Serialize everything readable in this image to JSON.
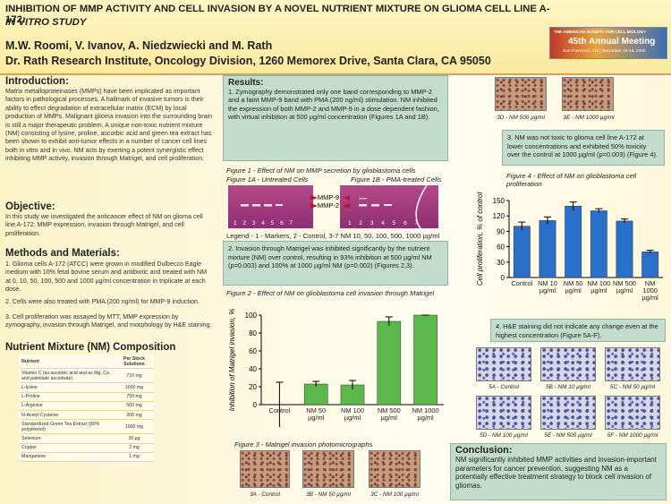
{
  "header": {
    "title_line1": "INHIBITION OF MMP ACTIVITY AND CELL INVASION BY A NOVEL NUTRIENT MIXTURE ON GLIOMA CELL LINE A-172:",
    "title_line2": "IN VITRO STUDY",
    "authors": "M.W. Roomi, V. Ivanov, A. Niedzwiecki and M. Rath",
    "affiliation": "Dr. Rath Research Institute, Oncology Division, 1260 Memorex Drive, Santa Clara, CA 95050",
    "logo": {
      "society": "THE AMERICAN SOCIETY FOR CELL BIOLOGY",
      "meeting": "45th Annual Meeting",
      "place": "San Francisco, CA | December 10-14, 2005"
    }
  },
  "introduction": {
    "heading": "Introduction:",
    "text": "Matrix metalloproteinases (MMPs) have been implicated as important factors in pathological processes. A hallmark of invasive tumors is their ability to effect degradation of extracellular matrix (ECM) by local production of MMPs. Malignant glioma invasion into the surrounding brain is still a major therapeutic problem. A unique non-toxic nutrient mixture (NM) consisting of lysine, proline, ascorbic acid and green tea extract has been shown to exhibit anti-tumor effects in a number of cancer cell lines both in vitro and in vivo. NM acts by exerting a potent synergistic effect inhibiting MMP activity, invasion through Matrigel, and cell proliferation."
  },
  "objective": {
    "heading": "Objective:",
    "text": "In this study we investigated the anticancer effect of NM on glioma cell line A-172: MMP expression, invasion through Matrigel, and cell proliferation."
  },
  "methods": {
    "heading": "Methods and Materials:",
    "items": [
      "1. Glioma cells A-172 (ATCC) were grown in modified Dulbecco Eagle medium with 10% fetal bovine serum and antibiotic and treated with NM at 0, 10, 50, 100, 500 and 1000 µg/ml concentration in triplicate at each dose.",
      "2. Cells were also treated with PMA (200 ng/ml) for MMP-9 induction.",
      "3. Cell proliferation was assayed by MTT, MMP expression by zymography, invasion through Matrigel, and morphology by H&E staining."
    ]
  },
  "composition": {
    "heading": "Nutrient Mixture (NM) Composition",
    "columns": [
      "Nutrient",
      "Per Stock Solutions"
    ],
    "rows": [
      [
        "Vitamin C (as ascorbic acid and as Mg, Ca and palmitate ascorbate)",
        "710 mg"
      ],
      [
        "L-lysine",
        "1000 mg"
      ],
      [
        "L-Proline",
        "750 mg"
      ],
      [
        "L-Arginine",
        "500 mg"
      ],
      [
        "N-Acetyl Cysteine",
        "200 mg"
      ],
      [
        "Standardized Green Tea Extract (80% polyphenol)",
        "1000 mg"
      ],
      [
        "Selenium",
        "30 µg"
      ],
      [
        "Copper",
        "2 mg"
      ],
      [
        "Manganese",
        "1 mg"
      ]
    ]
  },
  "results": {
    "heading": "Results:",
    "items": [
      "1. Zymography demonstrated only one band corresponding to MMP-2 and a faint MMP-9 band with PMA (200 ng/ml) stimulation. NM inhibited the expression of both MMP-2 and MMP-9 in a dose dependent fashion, with virtual inhibition at 500 µg/ml concentration (Figures 1A and 1B).",
      "2. Invasion through Matrigel was inhibited significantly by the nutrient mixture (NM) over control, resulting in 93% inhibition at 500 µg/ml NM (p=0.003) and 100% at 1000 µg/ml NM (p=0.002) (Figures 2,3).",
      "3. NM was not toxic to glioma cell line A-172 at lower concentrations and exhibited 50% toxicity over the control at 1000 µg/ml (p=0.003) (Figure 4).",
      "4. H&E staining did not indicate any change even at the highest concentration (Figure 5A-F)."
    ]
  },
  "figure1": {
    "title": "Figure 1 - Effect of NM on MMP secretion by glioblastoma cells",
    "panel_a": "Figure 1A - Untreated Cells",
    "panel_b": "Figure 1B - PMA-treated Cells",
    "mmp9": "MMP-9",
    "mmp2": "MMP-2",
    "lanes": "1 2 3 4 5 6 7",
    "legend": "Legend - 1 - Markers, 2 - Control, 3-7 NM 10, 50, 100, 500, 1000 µg/ml"
  },
  "figure3": {
    "title": "Figure 3 - Matrigel invasion photomicrographs",
    "photos": [
      "3A - Control",
      "3B - NM 50 µg/ml",
      "3C - NM 100 µg/ml",
      "3D - NM 500 µg/ml",
      "3E - NM 1000 µg/ml"
    ]
  },
  "figure5": {
    "photos": [
      "5A - Control",
      "5B - NM 10 µg/ml",
      "5C - NM 50 µg/ml",
      "5D - NM 100 µg/ml",
      "5E - NM 500 µg/ml",
      "5F - NM 1000 µg/ml"
    ]
  },
  "conclusion": {
    "heading": "Conclusion:",
    "text": "NM significantly inhibited MMP activities and invasion-important parameters for cancer prevention, suggesting NM as a potentially effective treatment strategy to block cell invasion of gliomas."
  },
  "chart_data": [
    {
      "type": "bar",
      "title": "Figure 2 - Effect of NM on glioblastoma cell invasion through Matrigel",
      "ylabel": "Inhibition of Matrigel invasion, %",
      "categories": [
        "Control",
        "NM 50 µg/ml",
        "NM 100 µg/ml",
        "NM 500 µg/ml",
        "NM 1000 µg/ml"
      ],
      "values": [
        0,
        23,
        22,
        93,
        100
      ],
      "errors": [
        25,
        3,
        5,
        5,
        0
      ],
      "color": "#5cb84a",
      "ylim": [
        0,
        100
      ],
      "yticks": [
        0,
        20,
        40,
        60,
        80,
        100
      ]
    },
    {
      "type": "bar",
      "title": "Figure 4 - Effect of NM on glioblastoma cell proliferation",
      "ylabel": "Cell proliferation, % of control",
      "categories": [
        "Control",
        "NM 10 µg/ml",
        "NM 50 µg/ml",
        "NM 100 µg/ml",
        "NM 500 µg/ml",
        "NM 1000 µg/ml"
      ],
      "values": [
        100,
        111,
        139,
        130,
        110,
        50
      ],
      "errors": [
        8,
        7,
        8,
        4,
        4,
        3
      ],
      "color": "#2a6fc9",
      "ylim": [
        0,
        150
      ],
      "yticks": [
        0,
        30,
        60,
        90,
        120,
        150
      ]
    }
  ]
}
